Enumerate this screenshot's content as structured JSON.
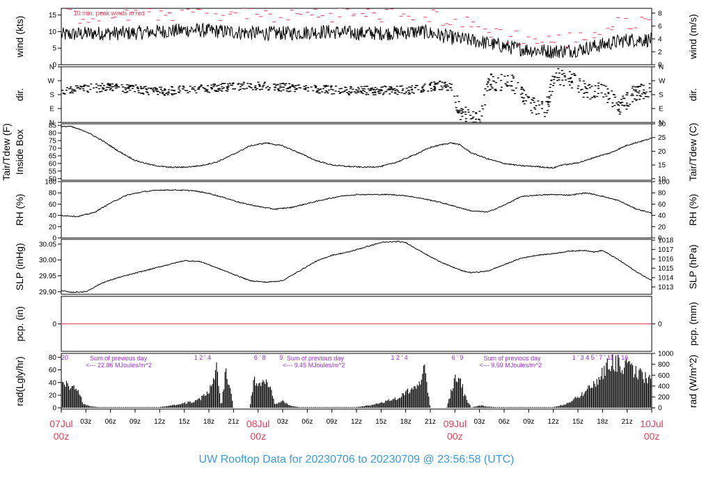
{
  "chart_data": {
    "type": "line",
    "title": "UW Rooftop Data for 20230706  to  20230709 @ 23:56:58  (UTC)",
    "x_range_hours": [
      0,
      72
    ],
    "x_ticks": [
      {
        "h": 0,
        "label": "07Jul",
        "sub": "00z",
        "major": true
      },
      {
        "h": 3,
        "label": "03z"
      },
      {
        "h": 6,
        "label": "06z"
      },
      {
        "h": 9,
        "label": "09z"
      },
      {
        "h": 12,
        "label": "12z"
      },
      {
        "h": 15,
        "label": "15z"
      },
      {
        "h": 18,
        "label": "18z"
      },
      {
        "h": 21,
        "label": "21z"
      },
      {
        "h": 24,
        "label": "08Jul",
        "sub": "00z",
        "major": true
      },
      {
        "h": 27,
        "label": "03z"
      },
      {
        "h": 30,
        "label": "06z"
      },
      {
        "h": 33,
        "label": "09z"
      },
      {
        "h": 36,
        "label": "12z"
      },
      {
        "h": 39,
        "label": "15z"
      },
      {
        "h": 42,
        "label": "18z"
      },
      {
        "h": 45,
        "label": "21z"
      },
      {
        "h": 48,
        "label": "09Jul",
        "sub": "00z",
        "major": true
      },
      {
        "h": 51,
        "label": "03z"
      },
      {
        "h": 54,
        "label": "06z"
      },
      {
        "h": 57,
        "label": "09z"
      },
      {
        "h": 60,
        "label": "12z"
      },
      {
        "h": 63,
        "label": "15z"
      },
      {
        "h": 66,
        "label": "18z"
      },
      {
        "h": 69,
        "label": "21z"
      },
      {
        "h": 72,
        "label": "10Jul",
        "sub": "00z",
        "major": true
      }
    ],
    "panels": [
      {
        "id": "wind",
        "left_label": "wind (kts)",
        "right_label": "wind (m/s)",
        "ylim": [
          0,
          17
        ],
        "left_ticks": [
          0,
          5,
          10,
          15
        ],
        "right_ticks": [
          {
            "v": 0,
            "label": "0"
          },
          {
            "v": 3.89,
            "label": "2"
          },
          {
            "v": 7.78,
            "label": "4"
          },
          {
            "v": 11.66,
            "label": "6"
          },
          {
            "v": 15.55,
            "label": "8"
          }
        ],
        "annotation": "10 min. peak winds in red",
        "series": [
          {
            "kind": "line",
            "color": "#000000",
            "jitter": 2.2,
            "hours": [
              0,
              4,
              8,
              12,
              16,
              20,
              24,
              28,
              32,
              36,
              40,
              44,
              48,
              51,
              54,
              57,
              60,
              63,
              66,
              69,
              72
            ],
            "values": [
              9,
              9.5,
              9.5,
              10,
              10.5,
              10,
              9.5,
              9.5,
              10,
              9.5,
              9.5,
              10,
              8,
              7,
              5.5,
              4.5,
              4,
              4.5,
              6,
              7.5,
              7.5
            ]
          },
          {
            "kind": "dash",
            "color": "#e0405a",
            "jitter": 2.5,
            "hours": [
              0,
              4,
              8,
              12,
              16,
              20,
              24,
              28,
              32,
              36,
              40,
              44,
              48,
              51,
              54,
              57,
              60,
              63,
              66,
              69,
              72
            ],
            "values": [
              14.5,
              15,
              15,
              15.5,
              16,
              15.5,
              15,
              15,
              15.5,
              15,
              15,
              15.5,
              13,
              11,
              9,
              7.5,
              7,
              8,
              10.5,
              13,
              13
            ]
          }
        ]
      },
      {
        "id": "dir",
        "left_label": "dir.",
        "right_label": "dir.",
        "ylim": [
          0,
          360
        ],
        "left_ticks_text": [
          {
            "v": 0,
            "label": "N"
          },
          {
            "v": 90,
            "label": "E"
          },
          {
            "v": 180,
            "label": "S"
          },
          {
            "v": 270,
            "label": "W"
          },
          {
            "v": 360,
            "label": "N"
          }
        ],
        "series": [
          {
            "kind": "points",
            "color": "#000000",
            "jitter": 28,
            "hours": [
              0,
              6,
              12,
              18,
              24,
              30,
              36,
              42,
              46,
              47.5,
              48.5,
              50,
              51,
              52,
              54,
              55,
              56,
              57,
              58,
              59,
              60,
              62,
              64,
              66,
              68,
              70,
              72
            ],
            "values": [
              210,
              230,
              200,
              220,
              240,
              215,
              205,
              210,
              240,
              230,
              60,
              40,
              40,
              260,
              260,
              250,
              200,
              120,
              100,
              80,
              300,
              280,
              200,
              210,
              100,
              200,
              220
            ]
          }
        ]
      },
      {
        "id": "temp",
        "left_label": "Tair/Tdew (F)",
        "left_label2": "Inside Box",
        "right_label": "Tair/Tdew (C)",
        "ylim": [
          49,
          86
        ],
        "left_ticks": [
          50,
          55,
          60,
          65,
          70,
          75,
          80,
          85
        ],
        "right_ticks": [
          {
            "v": 50,
            "label": "10"
          },
          {
            "v": 59,
            "label": "15"
          },
          {
            "v": 68,
            "label": "20"
          },
          {
            "v": 77,
            "label": "25"
          },
          {
            "v": 86,
            "label": "30"
          }
        ],
        "series": [
          {
            "kind": "line",
            "color": "#000000",
            "jitter": 0.4,
            "hours": [
              0,
              1,
              3,
              5,
              7,
              9,
              11,
              13,
              15,
              17,
              19,
              21,
              23,
              25,
              27,
              29,
              31,
              33,
              35,
              37,
              39,
              41,
              43,
              45,
              46.5,
              47.5,
              48.5,
              50,
              52,
              54,
              56,
              58,
              60,
              61,
              62,
              63,
              64,
              65,
              67,
              69,
              72
            ],
            "values": [
              84,
              84.5,
              81,
              75,
              68,
              62,
              59,
              57.5,
              57.5,
              58.5,
              61,
              66,
              71.5,
              73.5,
              71.5,
              67,
              62,
              59,
              58,
              57.5,
              58,
              61,
              65.5,
              70.5,
              72.5,
              73.5,
              72.5,
              67,
              63,
              60,
              58.5,
              58,
              57,
              59,
              59.5,
              60.5,
              62,
              64,
              67,
              72,
              76.5
            ]
          }
        ]
      },
      {
        "id": "rh",
        "left_label": "RH (%)",
        "right_label": "RH (%)",
        "ylim": [
          0,
          100
        ],
        "left_ticks": [
          0,
          20,
          40,
          60,
          80,
          100
        ],
        "right_ticks": [
          {
            "v": 0,
            "label": "0"
          },
          {
            "v": 20,
            "label": "20"
          },
          {
            "v": 40,
            "label": "40"
          },
          {
            "v": 60,
            "label": "60"
          },
          {
            "v": 80,
            "label": "80"
          },
          {
            "v": 100,
            "label": "100"
          }
        ],
        "series": [
          {
            "kind": "line",
            "color": "#000000",
            "jitter": 0.9,
            "hours": [
              0,
              2,
              4,
              6,
              8,
              10,
              12,
              14,
              16,
              18,
              20,
              22,
              24,
              26,
              28,
              30,
              32,
              34,
              36,
              38,
              40,
              42,
              44,
              46,
              48,
              50,
              52,
              54,
              56,
              58,
              60,
              62,
              64,
              66,
              68,
              70,
              72
            ],
            "values": [
              40,
              38,
              45,
              62,
              76,
              82,
              85,
              85,
              84,
              79,
              71,
              62,
              56,
              51,
              54,
              61,
              68,
              74,
              77,
              77,
              77,
              75,
              70,
              64,
              56,
              48,
              46,
              58,
              73,
              76,
              77,
              76,
              80,
              74,
              66,
              52,
              44
            ]
          }
        ]
      },
      {
        "id": "slp",
        "left_label": "SLP (inHg)",
        "right_label": "SLP (hPa)",
        "ylim": [
          29.892,
          30.065
        ],
        "left_ticks": [
          29.9,
          29.95,
          30.0,
          30.05
        ],
        "left_tick_labels": [
          "29.90",
          "29.95",
          "30.00",
          "30.05"
        ],
        "right_ticks": [
          {
            "v": 29.9149,
            "label": "1013"
          },
          {
            "v": 29.9444,
            "label": "1014"
          },
          {
            "v": 29.974,
            "label": "1015"
          },
          {
            "v": 30.0035,
            "label": "1016"
          },
          {
            "v": 30.033,
            "label": "1017"
          },
          {
            "v": 30.0625,
            "label": "1018"
          }
        ],
        "series": [
          {
            "kind": "line",
            "color": "#000000",
            "jitter": 0.0015,
            "hours": [
              0,
              1,
              3,
              5,
              7,
              10,
              13,
              15,
              17,
              19,
              21,
              23,
              25,
              27,
              29,
              31,
              33,
              35,
              37,
              39,
              41,
              42,
              43,
              45,
              47,
              49,
              50,
              52,
              54,
              56,
              58,
              60,
              62,
              64,
              65,
              66,
              68,
              70,
              72
            ],
            "values": [
              29.905,
              29.898,
              29.9,
              29.928,
              29.945,
              29.965,
              29.985,
              29.998,
              29.995,
              29.975,
              29.955,
              29.935,
              29.93,
              29.935,
              29.965,
              29.995,
              30.015,
              30.025,
              30.04,
              30.055,
              30.058,
              30.055,
              30.04,
              30.01,
              29.985,
              29.965,
              29.96,
              29.965,
              29.985,
              30.005,
              30.015,
              30.02,
              30.028,
              30.03,
              30.025,
              30.03,
              30.0,
              29.965,
              29.935
            ]
          }
        ]
      },
      {
        "id": "pcp",
        "left_label": "pcp. (in)",
        "right_label": "pcp. (mm)",
        "ylim": [
          -1,
          1
        ],
        "left_ticks": [
          0
        ],
        "right_ticks": [
          {
            "v": 0,
            "label": "0"
          }
        ],
        "series": [
          {
            "kind": "line",
            "color": "#e0405a",
            "jitter": 0,
            "hours": [
              0,
              72
            ],
            "values": [
              0,
              0
            ]
          }
        ]
      },
      {
        "id": "rad",
        "left_label": "rad(Lgly/hr)",
        "right_label": "rad (W/m^2)",
        "ylim": [
          -2,
          86
        ],
        "left_ticks": [
          0,
          20,
          40,
          60,
          80
        ],
        "right_ticks": [
          {
            "v": 0,
            "label": "0"
          },
          {
            "v": 17.2,
            "label": "200"
          },
          {
            "v": 34.4,
            "label": "400"
          },
          {
            "v": 51.6,
            "label": "600"
          },
          {
            "v": 68.8,
            "label": "800"
          },
          {
            "v": 86,
            "label": "1000"
          }
        ],
        "series": [
          {
            "kind": "bars",
            "color": "#000000",
            "jitter": 0.35,
            "hours": [
              0,
              1,
              2,
              2.4,
              2.6,
              3.5,
              4.5,
              12,
              14,
              16,
              17,
              17.5,
              18,
              18.3,
              18.6,
              18.8,
              19,
              19.5,
              20.1,
              21,
              22,
              23,
              23.5,
              24,
              24.8,
              25.5,
              26,
              27,
              28,
              29,
              36,
              38,
              40,
              41,
              42,
              43,
              43.5,
              44,
              44.3,
              45,
              46,
              47,
              48,
              48.5,
              48.9,
              49,
              50,
              51,
              52,
              53,
              60,
              62,
              63,
              64,
              64.5,
              65,
              65.5,
              66,
              66.5,
              67,
              68,
              70,
              72
            ],
            "values": [
              47,
              42,
              30,
              20,
              8,
              3,
              1,
              1,
              6,
              12,
              18,
              28,
              30,
              50,
              55,
              85,
              78,
              0,
              78,
              0,
              0,
              0,
              55,
              52,
              47,
              42,
              8,
              12,
              4,
              1,
              1,
              6,
              14,
              20,
              30,
              36,
              46,
              60,
              75,
              0,
              0,
              0,
              58,
              52,
              45,
              30,
              0,
              5,
              2,
              1,
              1,
              9,
              21,
              30,
              40,
              45,
              55,
              65,
              80,
              85,
              85,
              70,
              50
            ]
          }
        ],
        "annotations": [
          {
            "h": 0,
            "text": "20",
            "row": 1
          },
          {
            "h": 16.2,
            "text": "1   2  '  4",
            "row": 1
          },
          {
            "h": 23.5,
            "text": "6 '  8",
            "row": 1
          },
          {
            "h": 26.6,
            "text": "9",
            "row": 1
          },
          {
            "h": 40.2,
            "text": "1   2  '  4",
            "row": 1
          },
          {
            "h": 47.6,
            "text": "6 '  9",
            "row": 1
          },
          {
            "h": 62.3,
            "text": "1  '  3   4   5   '  7  '  11  '  '  16",
            "row": 1
          }
        ],
        "day_notes": [
          {
            "h": 3.5,
            "line1": "Sum of previous day",
            "line2": "<--- 22.86 MJoules/m^2"
          },
          {
            "h": 27.5,
            "line1": "Sum of previous day",
            "line2": "<--- 9.45 MJoules/m^2"
          },
          {
            "h": 51.5,
            "line1": "Sum of previous day",
            "line2": "<--- 9.59 MJoules/m^2"
          }
        ]
      }
    ]
  },
  "colors": {
    "title": "#3b9ad9",
    "date": "#e0405a",
    "purple": "#9b30d9",
    "red": "#e0405a"
  }
}
